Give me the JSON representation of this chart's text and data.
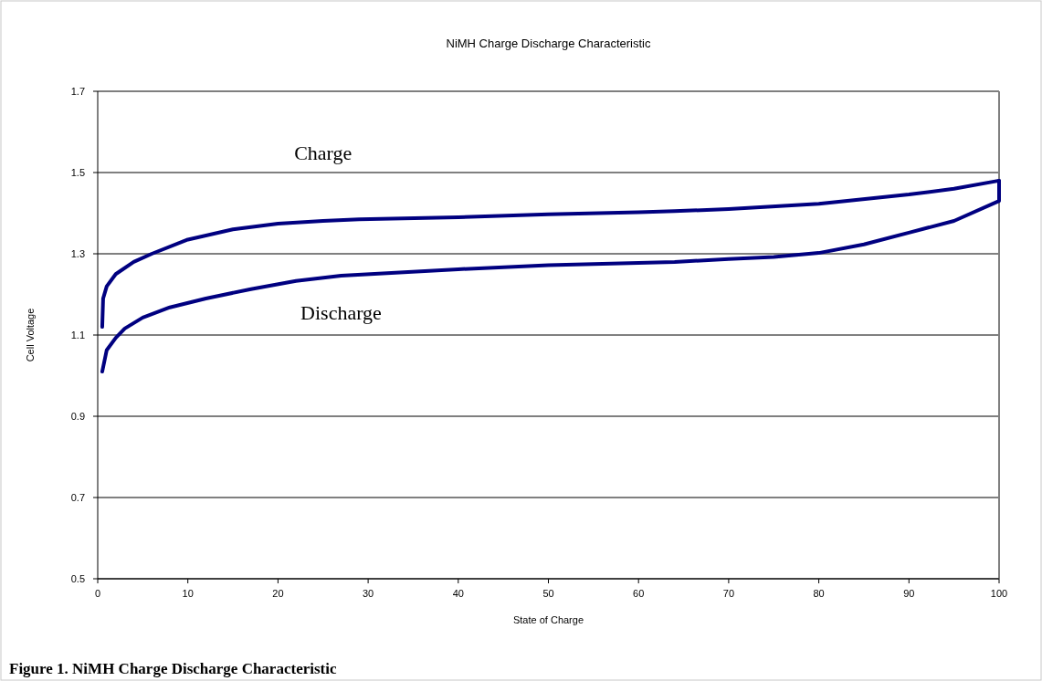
{
  "chart_data": {
    "type": "line",
    "title": "NiMH Charge Discharge Characteristic",
    "xlabel": "State of Charge",
    "ylabel": "Cell Voltage",
    "xlim": [
      0,
      100
    ],
    "xticks": [
      0,
      10,
      20,
      30,
      40,
      50,
      60,
      70,
      80,
      90,
      100
    ],
    "ylim": [
      0.5,
      1.7
    ],
    "yticks": [
      0.5,
      0.7,
      0.9,
      1.1,
      1.3,
      1.5,
      1.7
    ],
    "grid": "y",
    "marker": "none",
    "line_style": "solid",
    "series": [
      {
        "name": "Charge",
        "color": "#000080",
        "x": [
          0.5,
          0.6,
          1,
          2,
          4,
          6,
          10,
          15,
          20,
          25,
          29,
          40,
          50,
          60,
          64,
          70,
          80,
          90,
          95,
          100
        ],
        "values": [
          1.12,
          1.19,
          1.22,
          1.25,
          1.28,
          1.3,
          1.335,
          1.36,
          1.374,
          1.381,
          1.385,
          1.39,
          1.397,
          1.402,
          1.405,
          1.41,
          1.423,
          1.446,
          1.46,
          1.48
        ]
      },
      {
        "name": "Discharge",
        "color": "#000080",
        "x": [
          100,
          100,
          95,
          90,
          85,
          80,
          75,
          70,
          64,
          50,
          40,
          27,
          22,
          17,
          12,
          8,
          5,
          3,
          2,
          1,
          0.5
        ],
        "values": [
          1.48,
          1.43,
          1.381,
          1.352,
          1.323,
          1.302,
          1.292,
          1.287,
          1.28,
          1.272,
          1.262,
          1.246,
          1.233,
          1.213,
          1.19,
          1.168,
          1.143,
          1.116,
          1.093,
          1.063,
          1.01
        ]
      }
    ],
    "annotations": [
      "Figure 1.  NiMH Charge Discharge Characteristic"
    ]
  }
}
